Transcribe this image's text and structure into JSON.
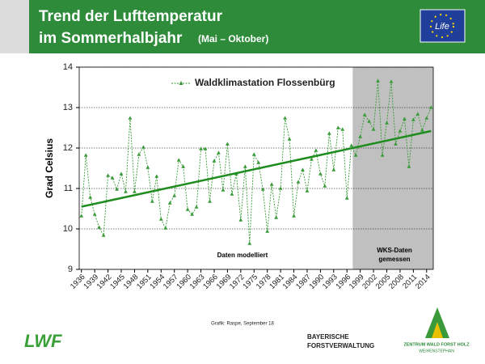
{
  "header": {
    "title_line1": "Trend der Lufttemperatur",
    "title_line2": "im Sommerhalbjahr",
    "title_note": "(Mai – Oktober)",
    "eu_logo": "Life"
  },
  "chart_data": {
    "type": "line",
    "y_label": "Grad Celsius",
    "x": [
      1936,
      1937,
      1938,
      1939,
      1940,
      1941,
      1942,
      1943,
      1944,
      1945,
      1946,
      1947,
      1948,
      1949,
      1950,
      1951,
      1952,
      1953,
      1954,
      1955,
      1956,
      1957,
      1958,
      1959,
      1960,
      1961,
      1962,
      1963,
      1964,
      1965,
      1966,
      1967,
      1968,
      1969,
      1970,
      1971,
      1972,
      1973,
      1974,
      1975,
      1976,
      1977,
      1978,
      1979,
      1980,
      1981,
      1982,
      1983,
      1984,
      1985,
      1986,
      1987,
      1988,
      1989,
      1990,
      1991,
      1992,
      1993,
      1994,
      1995,
      1996,
      1997,
      1998,
      1999,
      2000,
      2001,
      2002,
      2003,
      2004,
      2005,
      2006,
      2007,
      2008,
      2009,
      2010,
      2011,
      2012,
      2013,
      2014,
      2015
    ],
    "series": [
      {
        "name": "Waldklimastation Flossenbürg",
        "color": "#3a9a3a",
        "values": [
          10.32,
          11.82,
          10.78,
          10.36,
          10.04,
          9.84,
          11.32,
          11.26,
          10.98,
          11.36,
          10.92,
          12.74,
          10.92,
          11.84,
          12.02,
          11.52,
          10.68,
          11.3,
          10.24,
          10.02,
          10.64,
          10.82,
          11.7,
          11.54,
          10.48,
          10.36,
          10.54,
          11.98,
          11.98,
          10.68,
          11.68,
          11.88,
          10.96,
          12.1,
          10.86,
          11.36,
          10.22,
          11.54,
          9.64,
          11.84,
          11.64,
          10.98,
          9.94,
          11.1,
          10.28,
          11.0,
          12.74,
          12.22,
          10.32,
          11.16,
          11.46,
          10.94,
          11.72,
          11.94,
          11.36,
          11.06,
          12.36,
          11.46,
          12.5,
          12.46,
          10.76,
          12.06,
          11.82,
          12.28,
          12.82,
          12.66,
          12.46,
          13.66,
          11.82,
          12.62,
          13.64,
          12.1,
          12.42,
          12.72,
          11.54,
          12.7,
          12.84,
          12.44,
          12.74,
          13.0
        ]
      }
    ],
    "trend": {
      "color": "#1e8c1e",
      "x": [
        1936,
        2015
      ],
      "values": [
        10.55,
        12.42
      ]
    },
    "xlim": [
      1935.5,
      2015.5
    ],
    "xticks": [
      1936,
      1939,
      1942,
      1945,
      1948,
      1951,
      1954,
      1957,
      1960,
      1963,
      1966,
      1969,
      1972,
      1975,
      1978,
      1981,
      1984,
      1987,
      1990,
      1993,
      1996,
      1999,
      2002,
      2005,
      2008,
      2011,
      2014
    ],
    "ylim": [
      9,
      14
    ],
    "yticks": [
      9,
      10,
      11,
      12,
      13,
      14
    ],
    "grid": true,
    "shaded_region": {
      "x": [
        1997.3,
        2015.5
      ],
      "color": "#c0c0c0"
    },
    "annotation_modelled": "Daten modelliert",
    "annotation_measured": [
      "WKS-Daten",
      "gemessen"
    ]
  },
  "footer": {
    "credit": "Grafik: Raspe, September 18",
    "logo_lwf": "LWF",
    "logo_bayern": [
      "BAYERISCHE",
      "FORSTVERWALTUNG"
    ],
    "logo_zentrum": [
      "ZENTRUM WALD FORST HOLZ",
      "WEIHENSTEPHAN"
    ]
  }
}
